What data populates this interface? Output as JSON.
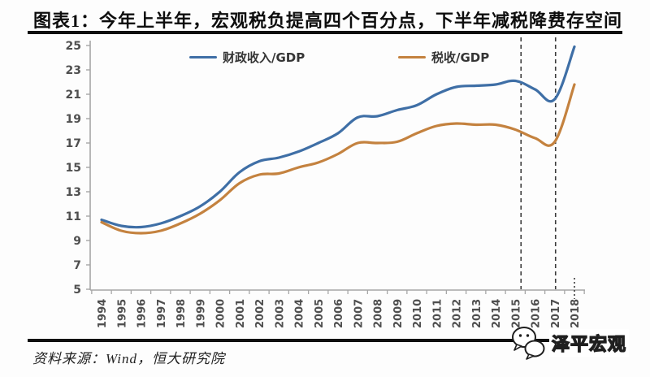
{
  "title": "图表1：今年上半年，宏观税负提高四个百分点，下半年减税降费存空间",
  "source_note": "资料来源：Wind，恒大研究院",
  "watermark": {
    "icon": "chat-bubbles-icon",
    "name": "泽平宏观"
  },
  "colors": {
    "fiscal_line": "#3f6fa6",
    "tax_line": "#c4823f",
    "axis": "#a6a6a6",
    "tick_label": "#4f4f4f",
    "dashed_line": "#3a3a3a",
    "rule": "#0f0f0f"
  },
  "chart_data": {
    "type": "line",
    "x": [
      "1994",
      "1995",
      "1996",
      "1997",
      "1998",
      "1999",
      "2000",
      "2001",
      "2002",
      "2003",
      "2004",
      "2005",
      "2006",
      "2007",
      "2008",
      "2009",
      "2010",
      "2011",
      "2012",
      "2013",
      "2014",
      "2015",
      "2016",
      "2017",
      "2018"
    ],
    "series": [
      {
        "name": "财政收入/GDP",
        "color": "#3f6fa6",
        "values": [
          10.7,
          10.2,
          10.1,
          10.4,
          11.0,
          11.8,
          13.0,
          14.6,
          15.5,
          15.8,
          16.3,
          17.0,
          17.8,
          19.1,
          19.2,
          19.7,
          20.1,
          21.0,
          21.6,
          21.7,
          21.8,
          22.1,
          21.4,
          20.6,
          24.9
        ]
      },
      {
        "name": "税收/GDP",
        "color": "#c4823f",
        "values": [
          10.5,
          9.8,
          9.6,
          9.8,
          10.4,
          11.2,
          12.3,
          13.7,
          14.4,
          14.5,
          15.0,
          15.4,
          16.1,
          17.0,
          17.0,
          17.1,
          17.8,
          18.4,
          18.6,
          18.5,
          18.5,
          18.1,
          17.4,
          17.1,
          21.8
        ]
      }
    ],
    "ylim": [
      5,
      25
    ],
    "yticks": [
      5,
      7,
      9,
      11,
      13,
      15,
      17,
      19,
      21,
      23,
      25
    ],
    "grid": false,
    "legend_position": "top-inside",
    "annotations": {
      "dashed_vlines_years": [
        "2015",
        "2017"
      ],
      "dotted_axis_marker_year": "2018"
    }
  }
}
